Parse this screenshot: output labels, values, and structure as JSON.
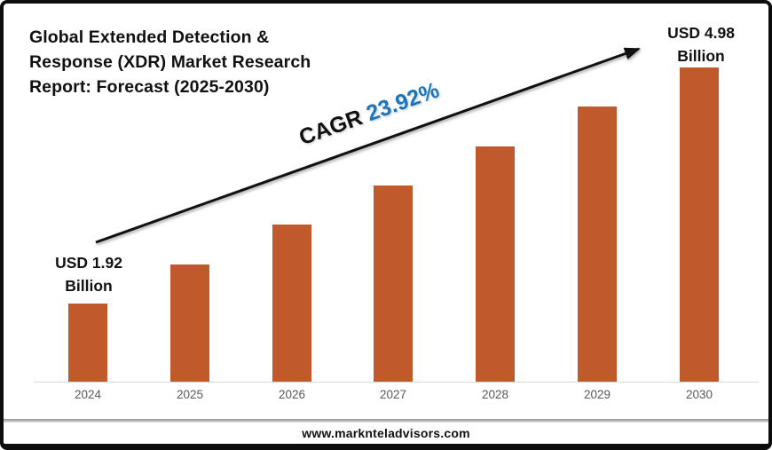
{
  "header": {
    "title_lines": [
      "Global Extended Detection &",
      "Response (XDR) Market Research",
      "Report: Forecast (2025-2030)"
    ]
  },
  "cagr": {
    "label": "CAGR",
    "value": "23.92%"
  },
  "annotations": {
    "first_bar": {
      "line1": "USD 1.92",
      "line2": "Billion"
    },
    "last_bar": {
      "line1": "USD 4.98",
      "line2": "Billion"
    }
  },
  "footer": {
    "url": "www.marknteladvisors.com"
  },
  "colors": {
    "bar": "#C05A2B",
    "accent_blue": "#1B75BC",
    "arrow": "#111111",
    "axis_line": "#D9D9D9",
    "tick_text": "#595959",
    "frame_border": "#0D0D0D"
  },
  "chart_data": {
    "type": "bar",
    "title": "Global Extended Detection & Response (XDR) Market Research Report: Forecast (2025-2030)",
    "categories": [
      "2024",
      "2025",
      "2026",
      "2027",
      "2028",
      "2029",
      "2030"
    ],
    "values": [
      1.92,
      2.43,
      2.94,
      3.45,
      3.96,
      4.47,
      4.98
    ],
    "unit": "USD Billion",
    "labeled_points": {
      "2024": 1.92,
      "2030": 4.98
    },
    "cagr_percent": 23.92,
    "xlabel": "",
    "ylabel": "",
    "grid": false,
    "legend_position": "none",
    "bar_color": "#C05A2B",
    "source": "www.marknteladvisors.com"
  }
}
